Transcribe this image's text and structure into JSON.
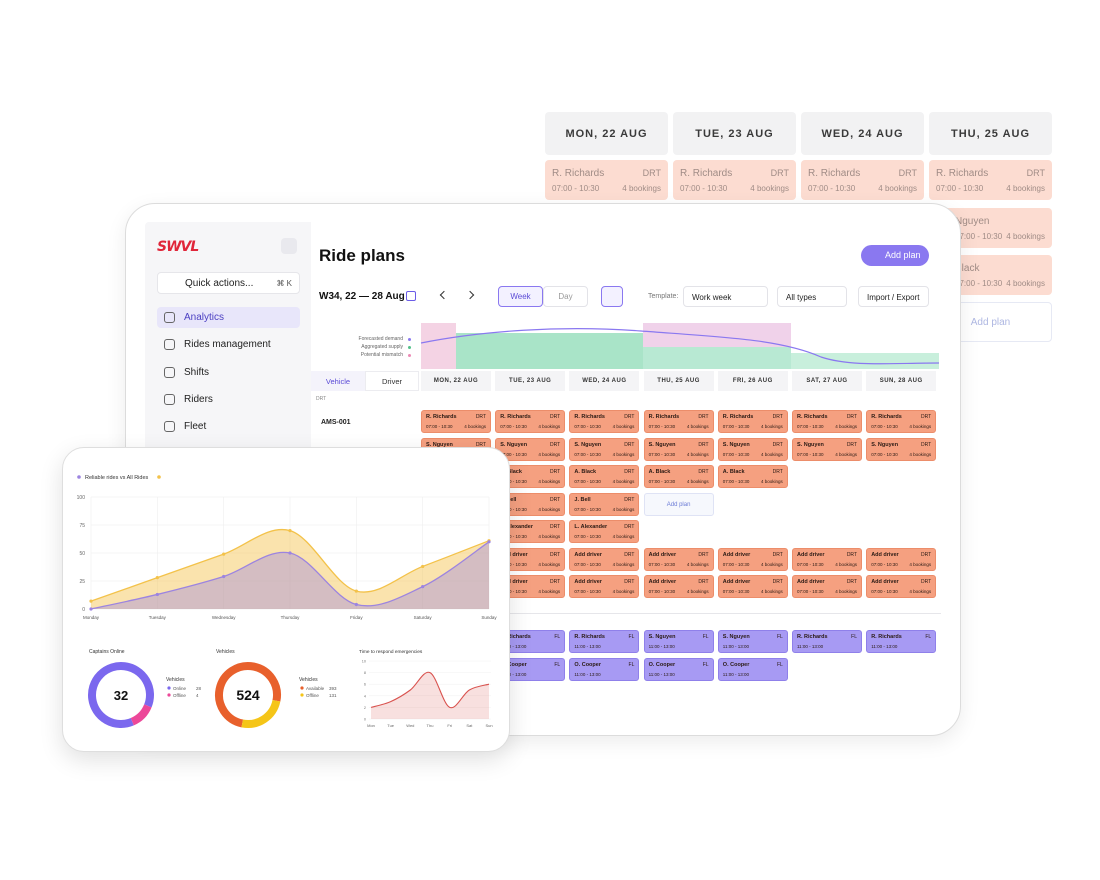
{
  "back_schedule": {
    "days": [
      "MON, 22 AUG",
      "TUE, 23 AUG",
      "WED, 24 AUG",
      "THU, 25 AUG"
    ],
    "cards": [
      {
        "name": "R. Richards",
        "tag": "DRT",
        "time": "07:00 - 10:30",
        "bookings": "4 bookings"
      },
      {
        "name": "R. Richards",
        "tag": "DRT",
        "time": "07:00 - 10:30",
        "bookings": "4 bookings"
      },
      {
        "name": "R. Richards",
        "tag": "DRT",
        "time": "07:00 - 10:30",
        "bookings": "4 bookings"
      },
      {
        "name": "R. Richards",
        "tag": "DRT",
        "time": "07:00 - 10:30",
        "bookings": "4 bookings"
      }
    ],
    "extra_cards": [
      {
        "name": "Nguyen",
        "time": "07:00 - 10:30",
        "bookings": "4 bookings"
      },
      {
        "name": "Black",
        "time": "07:00 - 10:30",
        "bookings": "4 bookings"
      }
    ],
    "add_plan": "Add plan"
  },
  "sidebar": {
    "logo": "SWVL",
    "quick_actions": "Quick actions...",
    "shortcut": "⌘ K",
    "nav": [
      "Analytics",
      "Rides management",
      "Shifts",
      "Riders",
      "Fleet"
    ]
  },
  "header": {
    "title": "Ride plans",
    "add_plan": "Add plan",
    "week": "W34, 22 — 28 Aug",
    "views": [
      "Week",
      "Day"
    ],
    "template_label": "Template:",
    "template": "Work week",
    "types": "All types",
    "import_export": "Import / Export"
  },
  "demand_legend": [
    "Forecasted demand",
    "Aggregated supply",
    "Potential mismatch"
  ],
  "tabs": [
    "Vehicle",
    "Driver"
  ],
  "days": [
    "MON, 22 AUG",
    "TUE, 23 AUG",
    "WED, 24 AUG",
    "THU, 25 AUG",
    "FRI, 26 AUG",
    "SAT, 27 AUG",
    "SUN, 28 AUG"
  ],
  "section": "DRT",
  "row_label": "AMS-001",
  "rows": [
    [
      {
        "name": "R. Richards",
        "tag": "DRT",
        "time": "07:00 - 10:30",
        "bookings": "4 bookings"
      },
      {
        "name": "R. Richards",
        "tag": "DRT",
        "time": "07:00 - 10:30",
        "bookings": "4 bookings"
      },
      {
        "name": "R. Richards",
        "tag": "DRT",
        "time": "07:00 - 10:30",
        "bookings": "4 bookings"
      },
      {
        "name": "R. Richards",
        "tag": "DRT",
        "time": "07:00 - 10:30",
        "bookings": "4 bookings"
      },
      {
        "name": "R. Richards",
        "tag": "DRT",
        "time": "07:00 - 10:30",
        "bookings": "4 bookings"
      },
      {
        "name": "R. Richards",
        "tag": "DRT",
        "time": "07:00 - 10:30",
        "bookings": "4 bookings"
      },
      {
        "name": "R. Richards",
        "tag": "DRT",
        "time": "07:00 - 10:30",
        "bookings": "4 bookings"
      }
    ],
    [
      {
        "name": "S. Nguyen",
        "tag": "DRT",
        "time": "07:00 - 10:30",
        "bookings": "4 bookings"
      },
      {
        "name": "S. Nguyen",
        "tag": "DRT",
        "time": "07:00 - 10:30",
        "bookings": "4 bookings"
      },
      {
        "name": "S. Nguyen",
        "tag": "DRT",
        "time": "07:00 - 10:30",
        "bookings": "4 bookings"
      },
      {
        "name": "S. Nguyen",
        "tag": "DRT",
        "time": "07:00 - 10:30",
        "bookings": "4 bookings"
      },
      {
        "name": "S. Nguyen",
        "tag": "DRT",
        "time": "07:00 - 10:30",
        "bookings": "4 bookings"
      },
      {
        "name": "S. Nguyen",
        "tag": "DRT",
        "time": "07:00 - 10:30",
        "bookings": "4 bookings"
      },
      {
        "name": "S. Nguyen",
        "tag": "DRT",
        "time": "07:00 - 10:30",
        "bookings": "4 bookings"
      }
    ],
    [
      null,
      {
        "name": "A. Black",
        "tag": "DRT",
        "time": "07:00 - 10:30",
        "bookings": "4 bookings"
      },
      {
        "name": "A. Black",
        "tag": "DRT",
        "time": "07:00 - 10:30",
        "bookings": "4 bookings"
      },
      {
        "name": "A. Black",
        "tag": "DRT",
        "time": "07:00 - 10:30",
        "bookings": "4 bookings"
      },
      {
        "name": "A. Black",
        "tag": "DRT",
        "time": "07:00 - 10:30",
        "bookings": "4 bookings"
      },
      null,
      null
    ],
    [
      null,
      {
        "name": "J. Bell",
        "tag": "DRT",
        "time": "07:00 - 10:30",
        "bookings": "4 bookings"
      },
      {
        "name": "J. Bell",
        "tag": "DRT",
        "time": "07:00 - 10:30",
        "bookings": "4 bookings"
      },
      null,
      null,
      null,
      null
    ],
    [
      null,
      {
        "name": "L. Alexander",
        "tag": "DRT",
        "time": "07:00 - 10:30",
        "bookings": "4 bookings"
      },
      {
        "name": "L. Alexander",
        "tag": "DRT",
        "time": "07:00 - 10:30",
        "bookings": "4 bookings"
      },
      null,
      null,
      null,
      null
    ],
    [
      null,
      {
        "name": "Add driver",
        "tag": "DRT",
        "time": "07:00 - 10:30",
        "bookings": "4 bookings"
      },
      {
        "name": "Add driver",
        "tag": "DRT",
        "time": "07:00 - 10:30",
        "bookings": "4 bookings"
      },
      {
        "name": "Add driver",
        "tag": "DRT",
        "time": "07:00 - 10:30",
        "bookings": "4 bookings"
      },
      {
        "name": "Add driver",
        "tag": "DRT",
        "time": "07:00 - 10:30",
        "bookings": "4 bookings"
      },
      {
        "name": "Add driver",
        "tag": "DRT",
        "time": "07:00 - 10:30",
        "bookings": "4 bookings"
      },
      {
        "name": "Add driver",
        "tag": "DRT",
        "time": "07:00 - 10:30",
        "bookings": "4 bookings"
      }
    ],
    [
      null,
      {
        "name": "Add driver",
        "tag": "DRT",
        "time": "07:00 - 10:30",
        "bookings": "4 bookings"
      },
      {
        "name": "Add driver",
        "tag": "DRT",
        "time": "07:00 - 10:30",
        "bookings": "4 bookings"
      },
      {
        "name": "Add driver",
        "tag": "DRT",
        "time": "07:00 - 10:30",
        "bookings": "4 bookings"
      },
      {
        "name": "Add driver",
        "tag": "DRT",
        "time": "07:00 - 10:30",
        "bookings": "4 bookings"
      },
      {
        "name": "Add driver",
        "tag": "DRT",
        "time": "07:00 - 10:30",
        "bookings": "4 bookings"
      },
      {
        "name": "Add driver",
        "tag": "DRT",
        "time": "07:00 - 10:30",
        "bookings": "4 bookings"
      }
    ]
  ],
  "grid_add_plan": "Add plan",
  "fl_rows": [
    [
      null,
      {
        "name": "R. Richards",
        "tag": "FL",
        "time": "11:00 - 13:00"
      },
      {
        "name": "R. Richards",
        "tag": "FL",
        "time": "11:00 - 13:00"
      },
      {
        "name": "S. Nguyen",
        "tag": "FL",
        "time": "11:00 - 13:00"
      },
      {
        "name": "S. Nguyen",
        "tag": "FL",
        "time": "11:00 - 13:00"
      },
      {
        "name": "R. Richards",
        "tag": "FL",
        "time": "11:00 - 13:00"
      },
      {
        "name": "R. Richards",
        "tag": "FL",
        "time": "11:00 - 13:00"
      }
    ],
    [
      null,
      {
        "name": "O. Cooper",
        "tag": "FL",
        "time": "11:00 - 13:00"
      },
      {
        "name": "O. Cooper",
        "tag": "FL",
        "time": "11:00 - 13:00"
      },
      {
        "name": "O. Cooper",
        "tag": "FL",
        "time": "11:00 - 13:00"
      },
      {
        "name": "O. Cooper",
        "tag": "FL",
        "time": "11:00 - 13:00"
      },
      null,
      null
    ]
  ],
  "analytics": {
    "line_chart": {
      "type": "line",
      "title": "Reliable rides vs All Rides",
      "categories": [
        "Monday",
        "Tuesday",
        "Wednesday",
        "Thursday",
        "Friday",
        "Saturday",
        "Sunday"
      ],
      "series": [
        {
          "name": "All Rides",
          "color": "#f3c24a",
          "values": [
            7,
            28,
            49,
            70,
            16,
            38,
            61
          ]
        },
        {
          "name": "Reliable rides",
          "color": "#9c84e0",
          "values": [
            0,
            13,
            29,
            50,
            4,
            20,
            60
          ]
        }
      ],
      "ylim": [
        0,
        100
      ],
      "yticks": [
        0,
        25,
        50,
        75,
        100
      ]
    },
    "captains": {
      "type": "pie",
      "title": "Captains Online",
      "total": "32",
      "legend_title": "Vehicles",
      "items": [
        {
          "name": "Online",
          "value": 28,
          "color": "#7b68ee"
        },
        {
          "name": "Offline",
          "value": 4,
          "color": "#ec4899"
        }
      ]
    },
    "vehicles": {
      "type": "pie",
      "title": "Vehicles",
      "total": "524",
      "legend_title": "Vehicles",
      "items": [
        {
          "name": "Available",
          "value": 393,
          "color": "#e8602c"
        },
        {
          "name": "Offline",
          "value": 131,
          "color": "#f5c518"
        }
      ]
    },
    "emergencies": {
      "type": "area",
      "title": "Time to respond emergencies",
      "categories": [
        "Mon",
        "Tue",
        "Wed",
        "Thu",
        "Fri",
        "Sat",
        "Sun"
      ],
      "color": "#d9534f",
      "values": [
        2,
        3,
        5,
        8,
        2,
        5,
        6
      ],
      "ylim": [
        0,
        10
      ],
      "yticks": [
        0,
        2,
        4,
        6,
        8,
        10
      ]
    }
  }
}
